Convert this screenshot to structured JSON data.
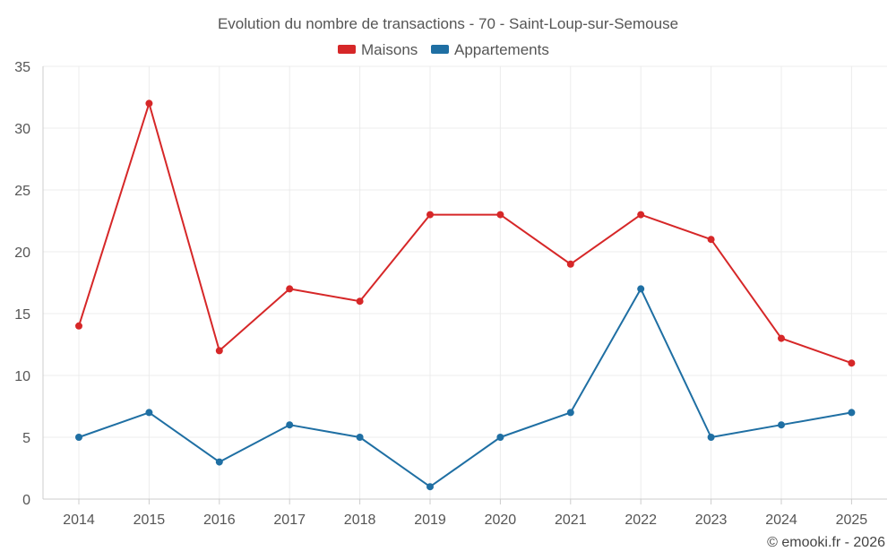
{
  "chart_data": {
    "type": "line",
    "title": "Evolution du nombre de transactions - 70 - Saint-Loup-sur-Semouse",
    "xlabel": "",
    "ylabel": "",
    "categories": [
      "2014",
      "2015",
      "2016",
      "2017",
      "2018",
      "2019",
      "2020",
      "2021",
      "2022",
      "2023",
      "2024",
      "2025"
    ],
    "ylim": [
      0,
      35
    ],
    "yticks": [
      0,
      5,
      10,
      15,
      20,
      25,
      30,
      35
    ],
    "grid": true,
    "legend_position": "top-center",
    "series": [
      {
        "name": "Maisons",
        "color": "#d62728",
        "values": [
          14,
          32,
          12,
          17,
          16,
          23,
          23,
          19,
          23,
          21,
          13,
          11
        ]
      },
      {
        "name": "Appartements",
        "color": "#1f6fa3",
        "values": [
          5,
          7,
          3,
          6,
          5,
          1,
          5,
          7,
          17,
          5,
          6,
          7
        ]
      }
    ]
  },
  "credit": "© emooki.fr - 2026"
}
